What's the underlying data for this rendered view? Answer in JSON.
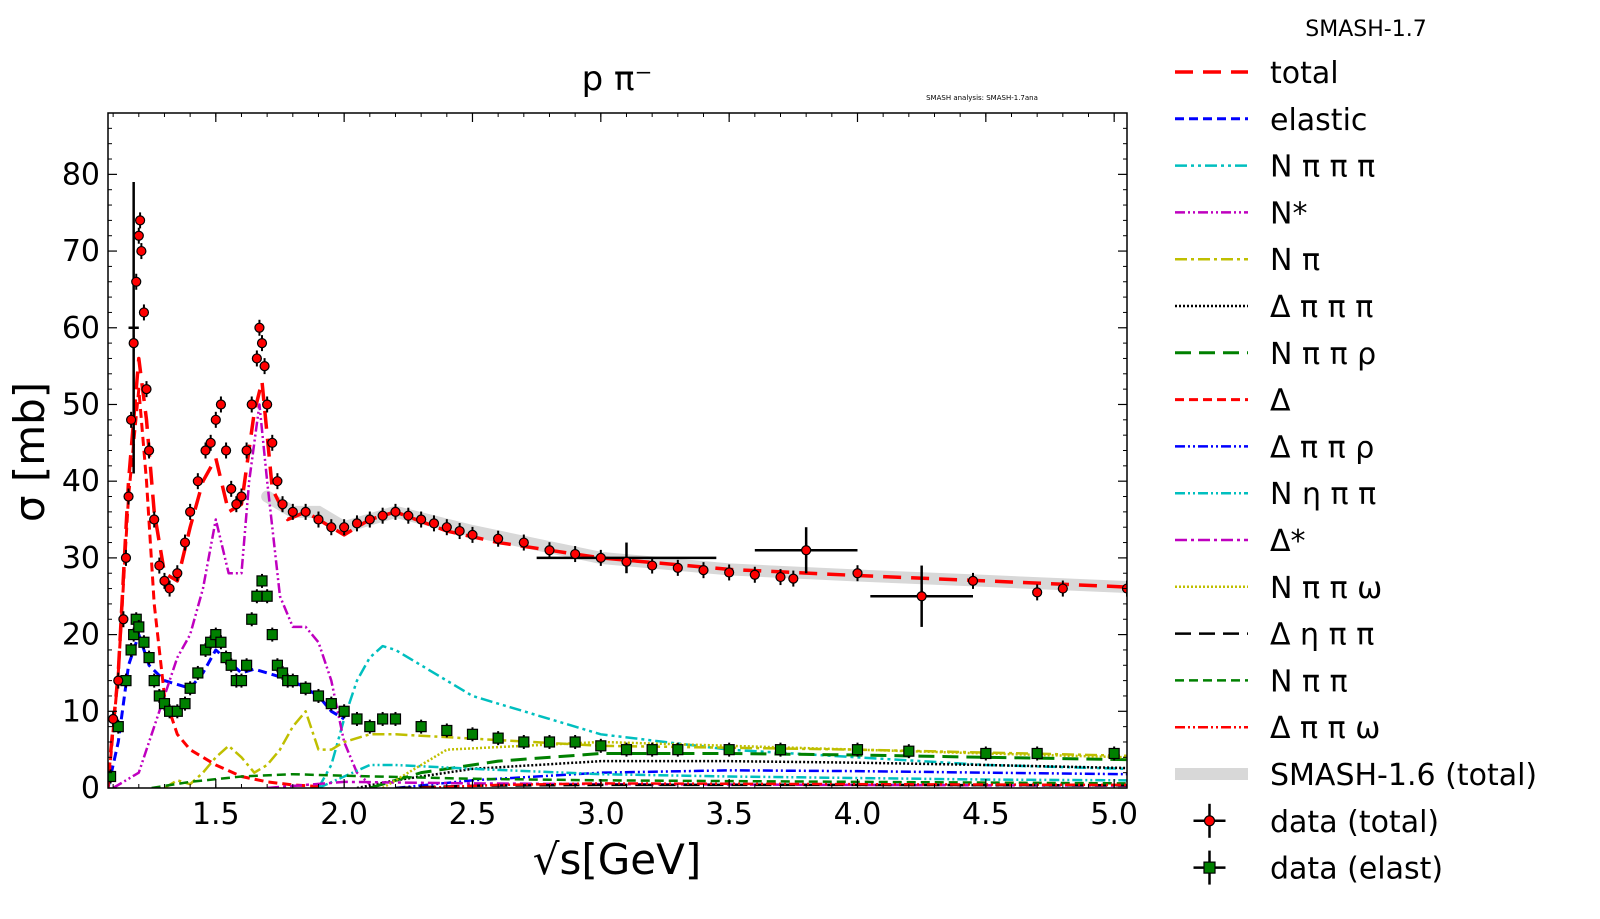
{
  "chart_data": {
    "type": "line",
    "title": "p π⁻",
    "version_label": "SMASH-1.7",
    "analysis_label": "SMASH analysis: SMASH-1.7ana",
    "xlabel": "√s[GeV]",
    "ylabel": "σ [mb]",
    "xlim": [
      1.08,
      5.05
    ],
    "ylim": [
      0,
      88
    ],
    "xticks": [
      "1.5",
      "2.0",
      "2.5",
      "3.0",
      "3.5",
      "4.0",
      "4.5",
      "5.0"
    ],
    "xtick_values": [
      1.5,
      2.0,
      2.5,
      3.0,
      3.5,
      4.0,
      4.5,
      5.0
    ],
    "yticks": [
      "0",
      "10",
      "20",
      "30",
      "40",
      "50",
      "60",
      "70",
      "80"
    ],
    "ytick_values": [
      0,
      10,
      20,
      30,
      40,
      50,
      60,
      70,
      80
    ],
    "series": [
      {
        "name": "total",
        "color": "#ff0000",
        "dash": "18,10",
        "width": 3.5,
        "x": [
          1.08,
          1.12,
          1.16,
          1.2,
          1.23,
          1.26,
          1.3,
          1.35,
          1.4,
          1.45,
          1.5,
          1.55,
          1.6,
          1.65,
          1.68,
          1.72,
          1.78,
          1.85,
          1.9,
          1.95,
          2.0,
          2.05,
          2.1,
          2.2,
          2.4,
          2.6,
          3.0,
          3.5,
          4.0,
          4.5,
          5.05
        ],
        "y": [
          1,
          15,
          40,
          56,
          48,
          36,
          28,
          27,
          34,
          40,
          43,
          36,
          37,
          49,
          53,
          39,
          35,
          36,
          35,
          34,
          33,
          34,
          35,
          36,
          33.5,
          32,
          30,
          28.5,
          27.7,
          27,
          26.2
        ]
      },
      {
        "name": "elastic",
        "color": "#0000ff",
        "dash": "9,5",
        "width": 3,
        "x": [
          1.08,
          1.12,
          1.16,
          1.2,
          1.24,
          1.3,
          1.35,
          1.4,
          1.45,
          1.5,
          1.55,
          1.6,
          1.65,
          1.7,
          1.75,
          1.8,
          1.85,
          1.9,
          1.95,
          2.0
        ],
        "y": [
          0,
          6,
          16,
          20,
          16,
          14,
          13.5,
          13,
          15,
          18,
          16.5,
          15,
          15.5,
          15,
          14.5,
          14,
          13,
          12,
          10,
          9
        ]
      },
      {
        "name": "N π π π",
        "color": "#00bfbf",
        "dash": "12,4,3,4,3,4",
        "width": 2.5,
        "x": [
          1.9,
          1.95,
          2.0,
          2.05,
          2.1,
          2.15,
          2.2,
          2.3,
          2.5,
          3.0,
          3.5,
          4.0,
          4.5,
          5.05
        ],
        "y": [
          0,
          3,
          9,
          14,
          17,
          18.5,
          18,
          16,
          12,
          7,
          5,
          4,
          3,
          2.5
        ]
      },
      {
        "name": "N*",
        "color": "#bf00bf",
        "dash": "10,3,2,3,2,3",
        "width": 2.5,
        "x": [
          1.1,
          1.2,
          1.3,
          1.35,
          1.4,
          1.45,
          1.5,
          1.55,
          1.6,
          1.63,
          1.67,
          1.7,
          1.75,
          1.8,
          1.85,
          1.9,
          1.95,
          2.0,
          2.05,
          2.1
        ],
        "y": [
          0,
          2,
          12,
          17,
          20,
          26,
          35,
          28,
          28,
          40,
          50,
          40,
          25,
          21,
          21,
          19,
          14,
          6,
          2,
          0.5
        ]
      },
      {
        "name": "N π",
        "color": "#bfbf00",
        "dash": "12,4,3,4",
        "width": 2.5,
        "x": [
          1.3,
          1.35,
          1.4,
          1.45,
          1.5,
          1.55,
          1.6,
          1.65,
          1.7,
          1.75,
          1.8,
          1.85,
          1.9,
          1.95,
          2.0,
          2.1,
          2.2,
          3.0,
          4.0,
          5.05
        ],
        "y": [
          0,
          1,
          0.5,
          2,
          4,
          5.5,
          4,
          2,
          3,
          5,
          8,
          10,
          5,
          5,
          6,
          7,
          7,
          5.5,
          5,
          4.2
        ]
      },
      {
        "name": "Δ π π π",
        "color": "#000000",
        "dash": "2,2",
        "width": 2.5,
        "x": [
          2.05,
          2.2,
          2.5,
          3.0,
          3.5,
          4.0,
          4.5,
          5.05
        ],
        "y": [
          0,
          1,
          2.5,
          3.5,
          3.5,
          3.3,
          3,
          2.6
        ]
      },
      {
        "name": "N π π ρ",
        "color": "#008000",
        "dash": "16,8",
        "width": 3,
        "x": [
          2.1,
          2.3,
          2.6,
          3.0,
          3.5,
          4.0,
          4.5,
          5.05
        ],
        "y": [
          0,
          2,
          3.5,
          4.5,
          4.5,
          4.3,
          4,
          3.7
        ]
      },
      {
        "name": "Δ",
        "color": "#ff0000",
        "dash": "9,5",
        "width": 3,
        "x": [
          1.08,
          1.12,
          1.16,
          1.2,
          1.23,
          1.26,
          1.3,
          1.35,
          1.4,
          1.5,
          1.6,
          1.7,
          1.8,
          1.9
        ],
        "y": [
          0,
          15,
          38,
          52,
          40,
          24,
          12,
          7,
          5,
          3,
          1.5,
          0.8,
          0.4,
          0.2
        ]
      },
      {
        "name": "Δ π π ρ",
        "color": "#0000ff",
        "dash": "10,3,2,3,2,3",
        "width": 2.5,
        "x": [
          2.2,
          2.5,
          3.0,
          3.5,
          4.0,
          4.5,
          5.05
        ],
        "y": [
          0,
          1,
          2,
          2.3,
          2.2,
          2,
          1.8
        ]
      },
      {
        "name": "N η π π",
        "color": "#00bfbf",
        "dash": "10,3,2,3,2,3",
        "width": 2.5,
        "x": [
          1.9,
          2.0,
          2.1,
          2.2,
          2.5,
          3.0,
          3.5,
          4.0,
          4.5,
          5.05
        ],
        "y": [
          0,
          1.5,
          3,
          3,
          2.5,
          1.8,
          1.5,
          1.3,
          1.1,
          1
        ]
      },
      {
        "name": "Δ*",
        "color": "#bf00bf",
        "dash": "12,4,3,4",
        "width": 2.5,
        "x": [
          1.7,
          2.0,
          2.5,
          3.0,
          4.0,
          5.05
        ],
        "y": [
          0,
          0.8,
          0.6,
          0.5,
          0.4,
          0.3
        ]
      },
      {
        "name": "N π π ω",
        "color": "#bfbf00",
        "dash": "2,2",
        "width": 2.5,
        "x": [
          2.15,
          2.4,
          3.0,
          3.5,
          4.0,
          4.5,
          5.05
        ],
        "y": [
          0,
          5,
          6,
          5.5,
          5,
          4.5,
          4
        ]
      },
      {
        "name": "Δ η π π",
        "color": "#000000",
        "dash": "16,8",
        "width": 2.5,
        "x": [
          2.2,
          2.5,
          3.0,
          4.0,
          5.05
        ],
        "y": [
          0,
          0.3,
          0.4,
          0.4,
          0.35
        ]
      },
      {
        "name": "N π π",
        "color": "#008000",
        "dash": "9,5",
        "width": 2.5,
        "x": [
          1.25,
          1.4,
          1.6,
          1.8,
          2.0,
          2.5,
          3.0,
          4.0,
          5.05
        ],
        "y": [
          0,
          0.8,
          1.5,
          1.8,
          1.6,
          1.2,
          1,
          0.8,
          0.6
        ]
      },
      {
        "name": "Δ π π ω",
        "color": "#ff0000",
        "dash": "10,3,2,3,2,3",
        "width": 2.5,
        "x": [
          2.3,
          2.6,
          3.0,
          4.0,
          5.05
        ],
        "y": [
          0,
          0.4,
          0.6,
          0.5,
          0.4
        ]
      }
    ],
    "band": {
      "name": "SMASH-1.6 (total)",
      "color": "#d8d8d8",
      "x": [
        1.7,
        1.8,
        1.9,
        2.0,
        2.1,
        2.2,
        2.5,
        3.0,
        3.5,
        4.0,
        4.5,
        5.05
      ],
      "y": [
        38,
        36,
        36,
        34,
        35,
        36,
        33.5,
        30,
        28.5,
        27.7,
        27,
        26.2
      ]
    },
    "data_total": {
      "name": "data (total)",
      "color": "#ff0000",
      "points": [
        [
          1.1,
          9
        ],
        [
          1.12,
          14
        ],
        [
          1.14,
          22
        ],
        [
          1.15,
          30
        ],
        [
          1.16,
          38
        ],
        [
          1.17,
          48
        ],
        [
          1.18,
          58
        ],
        [
          1.19,
          66
        ],
        [
          1.2,
          72
        ],
        [
          1.205,
          74
        ],
        [
          1.21,
          70
        ],
        [
          1.22,
          62
        ],
        [
          1.23,
          52
        ],
        [
          1.24,
          44
        ],
        [
          1.26,
          35
        ],
        [
          1.28,
          29
        ],
        [
          1.3,
          27
        ],
        [
          1.32,
          26
        ],
        [
          1.35,
          28
        ],
        [
          1.38,
          32
        ],
        [
          1.4,
          36
        ],
        [
          1.43,
          40
        ],
        [
          1.46,
          44
        ],
        [
          1.48,
          45
        ],
        [
          1.5,
          48
        ],
        [
          1.52,
          50
        ],
        [
          1.54,
          44
        ],
        [
          1.56,
          39
        ],
        [
          1.58,
          37
        ],
        [
          1.6,
          38
        ],
        [
          1.62,
          44
        ],
        [
          1.64,
          50
        ],
        [
          1.66,
          56
        ],
        [
          1.67,
          60
        ],
        [
          1.68,
          58
        ],
        [
          1.69,
          55
        ],
        [
          1.7,
          50
        ],
        [
          1.72,
          45
        ],
        [
          1.74,
          40
        ],
        [
          1.76,
          37
        ],
        [
          1.8,
          36
        ],
        [
          1.85,
          36
        ],
        [
          1.9,
          35
        ],
        [
          1.95,
          34
        ],
        [
          2.0,
          34
        ],
        [
          2.05,
          34.5
        ],
        [
          2.1,
          35
        ],
        [
          2.15,
          35.5
        ],
        [
          2.2,
          36
        ],
        [
          2.25,
          35.5
        ],
        [
          2.3,
          35
        ],
        [
          2.35,
          34.5
        ],
        [
          2.4,
          34
        ],
        [
          2.45,
          33.5
        ],
        [
          2.5,
          33
        ],
        [
          2.6,
          32.5
        ],
        [
          2.7,
          32
        ],
        [
          2.8,
          31
        ],
        [
          2.9,
          30.5
        ],
        [
          3.0,
          30
        ],
        [
          3.1,
          29.5
        ],
        [
          3.2,
          29
        ],
        [
          3.3,
          28.7
        ],
        [
          3.4,
          28.4
        ],
        [
          3.5,
          28.1
        ],
        [
          3.6,
          27.8
        ],
        [
          3.7,
          27.5
        ],
        [
          3.75,
          27.3
        ],
        [
          3.8,
          31
        ],
        [
          4.0,
          28
        ],
        [
          4.25,
          25
        ],
        [
          4.45,
          27
        ],
        [
          4.7,
          25.5
        ],
        [
          4.8,
          26
        ],
        [
          5.05,
          26
        ]
      ],
      "xerr_points": [
        [
          3.8,
          31,
          0.2,
          3
        ],
        [
          4.25,
          25,
          0.2,
          4
        ],
        [
          3.1,
          30,
          0.35,
          2
        ],
        [
          1.18,
          60,
          0.02,
          19
        ]
      ]
    },
    "data_elast": {
      "name": "data (elast)",
      "color": "#008000",
      "points": [
        [
          1.09,
          1.5
        ],
        [
          1.12,
          8
        ],
        [
          1.15,
          14
        ],
        [
          1.17,
          18
        ],
        [
          1.18,
          20
        ],
        [
          1.19,
          22
        ],
        [
          1.2,
          21
        ],
        [
          1.22,
          19
        ],
        [
          1.24,
          17
        ],
        [
          1.26,
          14
        ],
        [
          1.28,
          12
        ],
        [
          1.3,
          11
        ],
        [
          1.32,
          10
        ],
        [
          1.35,
          10
        ],
        [
          1.38,
          11
        ],
        [
          1.4,
          13
        ],
        [
          1.43,
          15
        ],
        [
          1.46,
          18
        ],
        [
          1.48,
          19
        ],
        [
          1.5,
          20
        ],
        [
          1.52,
          19
        ],
        [
          1.54,
          17
        ],
        [
          1.56,
          16
        ],
        [
          1.58,
          14
        ],
        [
          1.6,
          14
        ],
        [
          1.62,
          16
        ],
        [
          1.64,
          22
        ],
        [
          1.66,
          25
        ],
        [
          1.68,
          27
        ],
        [
          1.7,
          25
        ],
        [
          1.72,
          20
        ],
        [
          1.74,
          16
        ],
        [
          1.76,
          15
        ],
        [
          1.78,
          14
        ],
        [
          1.8,
          14
        ],
        [
          1.85,
          13
        ],
        [
          1.9,
          12
        ],
        [
          1.95,
          11
        ],
        [
          2.0,
          10
        ],
        [
          2.05,
          9
        ],
        [
          2.1,
          8
        ],
        [
          2.15,
          9
        ],
        [
          2.2,
          9
        ],
        [
          2.3,
          8
        ],
        [
          2.4,
          7.5
        ],
        [
          2.5,
          7
        ],
        [
          2.6,
          6.5
        ],
        [
          2.7,
          6
        ],
        [
          2.8,
          6
        ],
        [
          2.9,
          6
        ],
        [
          3.0,
          5.5
        ],
        [
          3.1,
          5
        ],
        [
          3.2,
          5
        ],
        [
          3.3,
          5
        ],
        [
          3.5,
          5
        ],
        [
          3.7,
          5
        ],
        [
          4.0,
          5
        ],
        [
          4.2,
          4.8
        ],
        [
          4.5,
          4.5
        ],
        [
          4.7,
          4.5
        ],
        [
          5.0,
          4.5
        ]
      ]
    }
  },
  "legend": {
    "header": "SMASH-1.7",
    "items": [
      {
        "label": "total",
        "color": "#ff0000",
        "dash": "18,10",
        "width": 3.5,
        "kind": "line"
      },
      {
        "label": "elastic",
        "color": "#0000ff",
        "dash": "9,5",
        "width": 3,
        "kind": "line"
      },
      {
        "label": "N π π π",
        "color": "#00bfbf",
        "dash": "12,4,3,4,3,4",
        "width": 2.5,
        "kind": "line"
      },
      {
        "label": "N*",
        "color": "#bf00bf",
        "dash": "10,3,2,3,2,3",
        "width": 2.5,
        "kind": "line"
      },
      {
        "label": "N π",
        "color": "#bfbf00",
        "dash": "12,4,3,4",
        "width": 2.5,
        "kind": "line"
      },
      {
        "label": "Δ π π π",
        "color": "#000000",
        "dash": "2,2",
        "width": 2.5,
        "kind": "line"
      },
      {
        "label": "N π π ρ",
        "color": "#008000",
        "dash": "16,8",
        "width": 3,
        "kind": "line"
      },
      {
        "label": "Δ",
        "color": "#ff0000",
        "dash": "9,5",
        "width": 3,
        "kind": "line"
      },
      {
        "label": "Δ π π ρ",
        "color": "#0000ff",
        "dash": "10,3,2,3,2,3",
        "width": 2.5,
        "kind": "line"
      },
      {
        "label": "N η π π",
        "color": "#00bfbf",
        "dash": "10,3,2,3,2,3",
        "width": 2.5,
        "kind": "line"
      },
      {
        "label": "Δ*",
        "color": "#bf00bf",
        "dash": "12,4,3,4",
        "width": 2.5,
        "kind": "line"
      },
      {
        "label": "N π π ω",
        "color": "#bfbf00",
        "dash": "2,2",
        "width": 2.5,
        "kind": "line"
      },
      {
        "label": "Δ η π π",
        "color": "#000000",
        "dash": "16,8",
        "width": 2.5,
        "kind": "line"
      },
      {
        "label": "N π π",
        "color": "#008000",
        "dash": "9,5",
        "width": 2.5,
        "kind": "line"
      },
      {
        "label": "Δ π π ω",
        "color": "#ff0000",
        "dash": "10,3,2,3,2,3",
        "width": 2.5,
        "kind": "line"
      },
      {
        "label": "SMASH-1.6 (total)",
        "color": "#d8d8d8",
        "dash": "",
        "width": 12,
        "kind": "band"
      },
      {
        "label": "data (total)",
        "color": "#ff0000",
        "kind": "errorbar-circle"
      },
      {
        "label": "data (elast)",
        "color": "#008000",
        "kind": "errorbar-square"
      }
    ]
  }
}
